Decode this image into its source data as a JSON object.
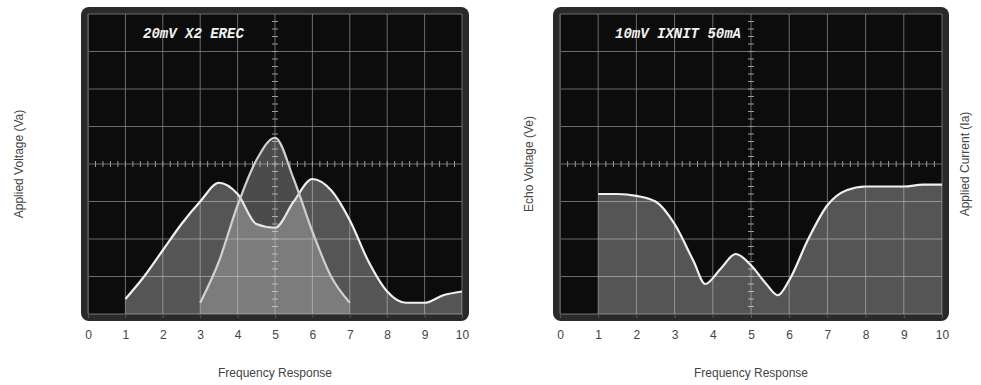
{
  "chart_data": [
    {
      "type": "area",
      "title": "20mV X2 EREC",
      "xlabel": "Frequency Response",
      "ylabel": "Applied Voltage (Va)",
      "x": [
        1,
        1.5,
        2,
        2.5,
        3,
        3.5,
        4,
        4.5,
        5,
        5.5,
        6,
        6.5,
        7,
        7.5,
        8,
        8.5,
        9,
        9.5,
        10
      ],
      "series": [
        {
          "color": "#f0f0f0",
          "values": [
            0.4,
            1.0,
            1.7,
            2.4,
            3.0,
            3.5,
            3.2,
            2.4,
            2.3,
            3.0,
            3.6,
            3.3,
            2.5,
            1.4,
            0.6,
            0.3,
            0.3,
            0.5,
            0.6
          ]
        },
        {
          "color": "#d0d0d0",
          "values": [
            null,
            null,
            null,
            null,
            0.3,
            1.4,
            2.9,
            4.1,
            4.7,
            3.6,
            2.2,
            1.0,
            0.3,
            null,
            null,
            null,
            null,
            null,
            null
          ]
        }
      ],
      "xlim": [
        0,
        10
      ],
      "xticks": [
        0,
        1,
        2,
        3,
        4,
        5,
        6,
        7,
        8,
        9,
        10
      ],
      "ylim": [
        0,
        8
      ],
      "yticks": [
        0,
        1,
        2,
        3,
        4,
        5,
        6,
        7,
        8
      ],
      "grid": true,
      "tick_labels": "x"
    },
    {
      "type": "area",
      "title": "10mV IXNIT 50mA",
      "xlabel": "Frequency Response",
      "ylabel": "Echo Voltage (Ve)",
      "y2label": "Applied Current (Ia)",
      "x": [
        1,
        1.5,
        2,
        2.5,
        3,
        3.5,
        3.8,
        4.2,
        4.6,
        5,
        5.4,
        5.7,
        6,
        6.5,
        7,
        7.5,
        8,
        8.5,
        9,
        9.5,
        10
      ],
      "series": [
        {
          "color": "#f0f0f0",
          "values": [
            3.2,
            3.2,
            3.15,
            3.0,
            2.4,
            1.4,
            0.8,
            1.2,
            1.6,
            1.3,
            0.8,
            0.5,
            0.9,
            2.0,
            2.9,
            3.3,
            3.4,
            3.4,
            3.4,
            3.45,
            3.45
          ]
        }
      ],
      "xlim": [
        0,
        10
      ],
      "xticks": [
        0,
        1,
        2,
        3,
        4,
        5,
        6,
        7,
        8,
        9,
        10
      ],
      "ylim": [
        0,
        8
      ],
      "yticks": [
        0,
        1,
        2,
        3,
        4,
        5,
        6,
        7,
        8
      ],
      "grid": true,
      "tick_labels": "x"
    }
  ]
}
